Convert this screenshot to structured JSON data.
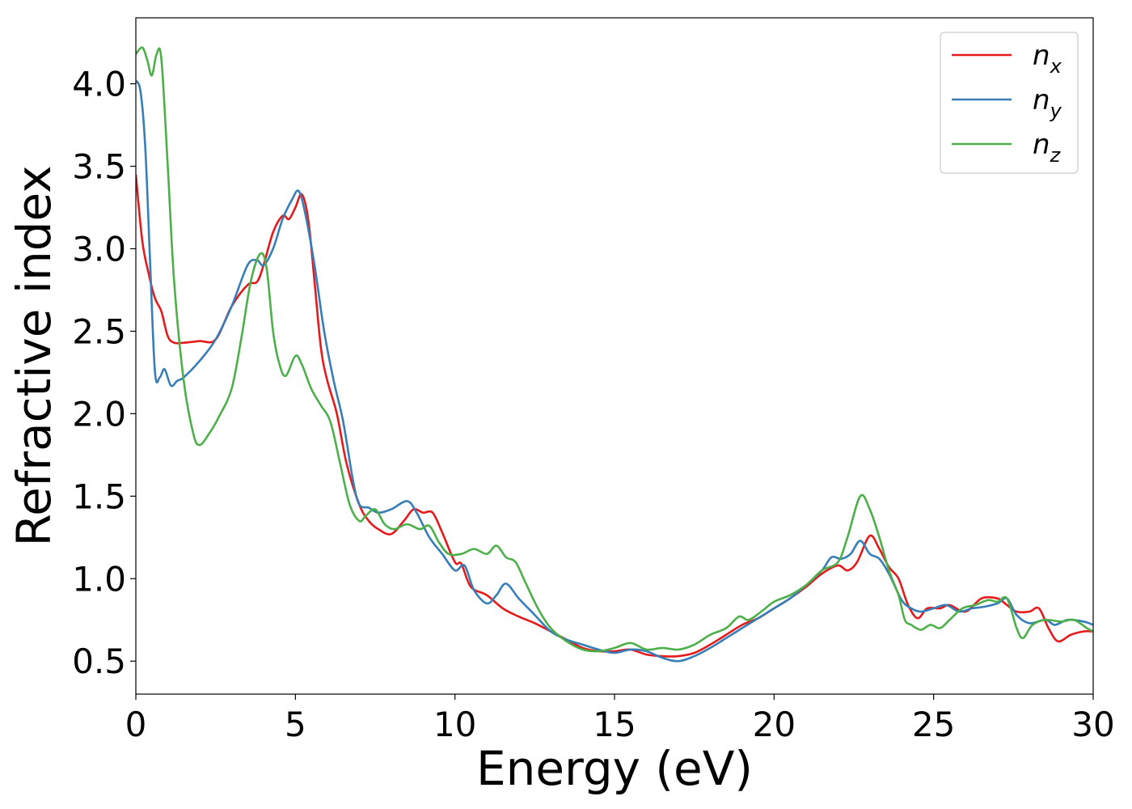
{
  "chart_data": {
    "type": "line",
    "title": "",
    "xlabel": "Energy (eV)",
    "ylabel": "Refractive index",
    "xlim": [
      0,
      30
    ],
    "ylim": [
      0.3,
      4.4
    ],
    "xticks": [
      0,
      5,
      10,
      15,
      20,
      25,
      30
    ],
    "xtick_labels": [
      "0",
      "5",
      "10",
      "15",
      "20",
      "25",
      "30"
    ],
    "yticks": [
      0.5,
      1.0,
      1.5,
      2.0,
      2.5,
      3.0,
      3.5,
      4.0
    ],
    "ytick_labels": [
      "0.5",
      "1.0",
      "1.5",
      "2.0",
      "2.5",
      "3.0",
      "3.5",
      "4.0"
    ],
    "grid": false,
    "legend_position": "top-right",
    "series": [
      {
        "name": "n_x",
        "label_base": "n",
        "label_sub": "x",
        "color": "#e41a1c",
        "points": [
          [
            0,
            3.45
          ],
          [
            0.2,
            3.05
          ],
          [
            0.4,
            2.85
          ],
          [
            0.6,
            2.7
          ],
          [
            0.8,
            2.62
          ],
          [
            1.0,
            2.47
          ],
          [
            1.2,
            2.43
          ],
          [
            1.5,
            2.43
          ],
          [
            2.0,
            2.44
          ],
          [
            2.5,
            2.45
          ],
          [
            3.0,
            2.65
          ],
          [
            3.5,
            2.78
          ],
          [
            3.8,
            2.8
          ],
          [
            4.0,
            2.9
          ],
          [
            4.3,
            3.1
          ],
          [
            4.6,
            3.2
          ],
          [
            4.8,
            3.18
          ],
          [
            5.0,
            3.25
          ],
          [
            5.2,
            3.33
          ],
          [
            5.4,
            3.18
          ],
          [
            5.6,
            2.8
          ],
          [
            5.8,
            2.4
          ],
          [
            6.0,
            2.2
          ],
          [
            6.3,
            2.0
          ],
          [
            6.6,
            1.7
          ],
          [
            7.0,
            1.45
          ],
          [
            7.3,
            1.35
          ],
          [
            7.6,
            1.3
          ],
          [
            8.0,
            1.27
          ],
          [
            8.4,
            1.35
          ],
          [
            8.7,
            1.42
          ],
          [
            9.0,
            1.4
          ],
          [
            9.3,
            1.4
          ],
          [
            9.6,
            1.28
          ],
          [
            10.0,
            1.1
          ],
          [
            10.2,
            1.09
          ],
          [
            10.5,
            0.95
          ],
          [
            11.0,
            0.9
          ],
          [
            11.5,
            0.82
          ],
          [
            12.0,
            0.77
          ],
          [
            12.5,
            0.73
          ],
          [
            13.0,
            0.68
          ],
          [
            13.5,
            0.63
          ],
          [
            14.0,
            0.58
          ],
          [
            14.5,
            0.56
          ],
          [
            15.0,
            0.56
          ],
          [
            15.5,
            0.57
          ],
          [
            16.0,
            0.54
          ],
          [
            16.5,
            0.53
          ],
          [
            17.0,
            0.53
          ],
          [
            17.5,
            0.55
          ],
          [
            18.0,
            0.6
          ],
          [
            18.5,
            0.66
          ],
          [
            19.0,
            0.72
          ],
          [
            19.5,
            0.76
          ],
          [
            20.0,
            0.82
          ],
          [
            20.5,
            0.88
          ],
          [
            21.0,
            0.95
          ],
          [
            21.5,
            1.03
          ],
          [
            22.0,
            1.08
          ],
          [
            22.3,
            1.05
          ],
          [
            22.6,
            1.1
          ],
          [
            23.0,
            1.26
          ],
          [
            23.3,
            1.18
          ],
          [
            23.6,
            1.07
          ],
          [
            23.9,
            1.0
          ],
          [
            24.2,
            0.84
          ],
          [
            24.5,
            0.76
          ],
          [
            24.8,
            0.82
          ],
          [
            25.2,
            0.82
          ],
          [
            25.5,
            0.84
          ],
          [
            26.0,
            0.8
          ],
          [
            26.5,
            0.88
          ],
          [
            27.0,
            0.88
          ],
          [
            27.3,
            0.84
          ],
          [
            27.6,
            0.8
          ],
          [
            28.0,
            0.8
          ],
          [
            28.3,
            0.82
          ],
          [
            28.6,
            0.7
          ],
          [
            28.9,
            0.62
          ],
          [
            29.3,
            0.66
          ],
          [
            29.7,
            0.68
          ],
          [
            30.0,
            0.68
          ]
        ]
      },
      {
        "name": "n_y",
        "label_base": "n",
        "label_sub": "y",
        "color": "#377eb8",
        "points": [
          [
            0,
            4.02
          ],
          [
            0.15,
            3.95
          ],
          [
            0.3,
            3.6
          ],
          [
            0.45,
            2.9
          ],
          [
            0.6,
            2.25
          ],
          [
            0.75,
            2.22
          ],
          [
            0.9,
            2.27
          ],
          [
            1.1,
            2.17
          ],
          [
            1.3,
            2.2
          ],
          [
            1.5,
            2.22
          ],
          [
            2.0,
            2.32
          ],
          [
            2.5,
            2.45
          ],
          [
            3.0,
            2.65
          ],
          [
            3.5,
            2.9
          ],
          [
            3.8,
            2.93
          ],
          [
            4.0,
            2.9
          ],
          [
            4.3,
            3.0
          ],
          [
            4.6,
            3.18
          ],
          [
            4.9,
            3.3
          ],
          [
            5.1,
            3.35
          ],
          [
            5.3,
            3.22
          ],
          [
            5.6,
            2.9
          ],
          [
            5.9,
            2.5
          ],
          [
            6.2,
            2.2
          ],
          [
            6.5,
            1.95
          ],
          [
            6.8,
            1.6
          ],
          [
            7.0,
            1.45
          ],
          [
            7.3,
            1.43
          ],
          [
            7.6,
            1.4
          ],
          [
            8.0,
            1.42
          ],
          [
            8.5,
            1.47
          ],
          [
            8.8,
            1.4
          ],
          [
            9.2,
            1.25
          ],
          [
            9.6,
            1.15
          ],
          [
            10.0,
            1.05
          ],
          [
            10.3,
            1.08
          ],
          [
            10.6,
            0.93
          ],
          [
            11.0,
            0.85
          ],
          [
            11.3,
            0.9
          ],
          [
            11.6,
            0.97
          ],
          [
            12.0,
            0.88
          ],
          [
            12.5,
            0.78
          ],
          [
            13.0,
            0.68
          ],
          [
            13.5,
            0.63
          ],
          [
            14.0,
            0.6
          ],
          [
            14.5,
            0.57
          ],
          [
            15.0,
            0.55
          ],
          [
            15.5,
            0.57
          ],
          [
            16.0,
            0.56
          ],
          [
            16.5,
            0.52
          ],
          [
            17.0,
            0.5
          ],
          [
            17.5,
            0.53
          ],
          [
            18.0,
            0.58
          ],
          [
            18.5,
            0.64
          ],
          [
            19.0,
            0.7
          ],
          [
            19.5,
            0.76
          ],
          [
            20.0,
            0.82
          ],
          [
            20.5,
            0.88
          ],
          [
            21.0,
            0.96
          ],
          [
            21.5,
            1.05
          ],
          [
            21.8,
            1.13
          ],
          [
            22.1,
            1.12
          ],
          [
            22.4,
            1.15
          ],
          [
            22.7,
            1.23
          ],
          [
            23.0,
            1.15
          ],
          [
            23.3,
            1.12
          ],
          [
            23.6,
            1.03
          ],
          [
            24.0,
            0.87
          ],
          [
            24.3,
            0.82
          ],
          [
            24.6,
            0.8
          ],
          [
            25.0,
            0.82
          ],
          [
            25.4,
            0.84
          ],
          [
            25.8,
            0.8
          ],
          [
            26.2,
            0.82
          ],
          [
            26.6,
            0.83
          ],
          [
            27.0,
            0.85
          ],
          [
            27.3,
            0.88
          ],
          [
            27.6,
            0.78
          ],
          [
            28.0,
            0.73
          ],
          [
            28.5,
            0.75
          ],
          [
            28.8,
            0.72
          ],
          [
            29.2,
            0.75
          ],
          [
            29.7,
            0.74
          ],
          [
            30.0,
            0.72
          ]
        ]
      },
      {
        "name": "n_z",
        "label_base": "n",
        "label_sub": "z",
        "color": "#4daf4a",
        "points": [
          [
            0,
            4.18
          ],
          [
            0.2,
            4.22
          ],
          [
            0.35,
            4.15
          ],
          [
            0.5,
            4.05
          ],
          [
            0.65,
            4.18
          ],
          [
            0.8,
            4.15
          ],
          [
            1.0,
            3.5
          ],
          [
            1.2,
            2.8
          ],
          [
            1.5,
            2.2
          ],
          [
            1.8,
            1.88
          ],
          [
            2.0,
            1.81
          ],
          [
            2.3,
            1.88
          ],
          [
            2.6,
            1.98
          ],
          [
            3.0,
            2.15
          ],
          [
            3.3,
            2.45
          ],
          [
            3.6,
            2.8
          ],
          [
            3.9,
            2.97
          ],
          [
            4.1,
            2.88
          ],
          [
            4.3,
            2.5
          ],
          [
            4.5,
            2.3
          ],
          [
            4.7,
            2.23
          ],
          [
            5.0,
            2.35
          ],
          [
            5.2,
            2.3
          ],
          [
            5.5,
            2.15
          ],
          [
            5.8,
            2.05
          ],
          [
            6.1,
            1.95
          ],
          [
            6.4,
            1.7
          ],
          [
            6.7,
            1.45
          ],
          [
            7.0,
            1.35
          ],
          [
            7.2,
            1.38
          ],
          [
            7.5,
            1.42
          ],
          [
            7.8,
            1.33
          ],
          [
            8.1,
            1.3
          ],
          [
            8.5,
            1.33
          ],
          [
            8.9,
            1.3
          ],
          [
            9.2,
            1.32
          ],
          [
            9.5,
            1.22
          ],
          [
            9.8,
            1.15
          ],
          [
            10.2,
            1.15
          ],
          [
            10.6,
            1.18
          ],
          [
            11.0,
            1.15
          ],
          [
            11.3,
            1.2
          ],
          [
            11.6,
            1.13
          ],
          [
            11.9,
            1.1
          ],
          [
            12.2,
            0.98
          ],
          [
            12.6,
            0.82
          ],
          [
            13.0,
            0.7
          ],
          [
            13.5,
            0.62
          ],
          [
            14.0,
            0.57
          ],
          [
            14.5,
            0.56
          ],
          [
            15.0,
            0.58
          ],
          [
            15.5,
            0.61
          ],
          [
            16.0,
            0.57
          ],
          [
            16.5,
            0.58
          ],
          [
            17.0,
            0.57
          ],
          [
            17.5,
            0.6
          ],
          [
            18.0,
            0.66
          ],
          [
            18.5,
            0.7
          ],
          [
            18.9,
            0.77
          ],
          [
            19.2,
            0.75
          ],
          [
            19.6,
            0.8
          ],
          [
            20.0,
            0.86
          ],
          [
            20.5,
            0.9
          ],
          [
            21.0,
            0.96
          ],
          [
            21.5,
            1.05
          ],
          [
            22.0,
            1.1
          ],
          [
            22.3,
            1.25
          ],
          [
            22.7,
            1.5
          ],
          [
            23.0,
            1.42
          ],
          [
            23.3,
            1.25
          ],
          [
            23.6,
            1.05
          ],
          [
            23.9,
            0.9
          ],
          [
            24.1,
            0.75
          ],
          [
            24.3,
            0.72
          ],
          [
            24.6,
            0.69
          ],
          [
            24.9,
            0.72
          ],
          [
            25.2,
            0.7
          ],
          [
            25.5,
            0.75
          ],
          [
            25.9,
            0.82
          ],
          [
            26.3,
            0.84
          ],
          [
            26.7,
            0.87
          ],
          [
            27.0,
            0.86
          ],
          [
            27.3,
            0.88
          ],
          [
            27.6,
            0.7
          ],
          [
            27.8,
            0.64
          ],
          [
            28.1,
            0.72
          ],
          [
            28.5,
            0.75
          ],
          [
            29.0,
            0.74
          ],
          [
            29.4,
            0.75
          ],
          [
            29.8,
            0.7
          ],
          [
            30.0,
            0.68
          ]
        ]
      }
    ]
  }
}
